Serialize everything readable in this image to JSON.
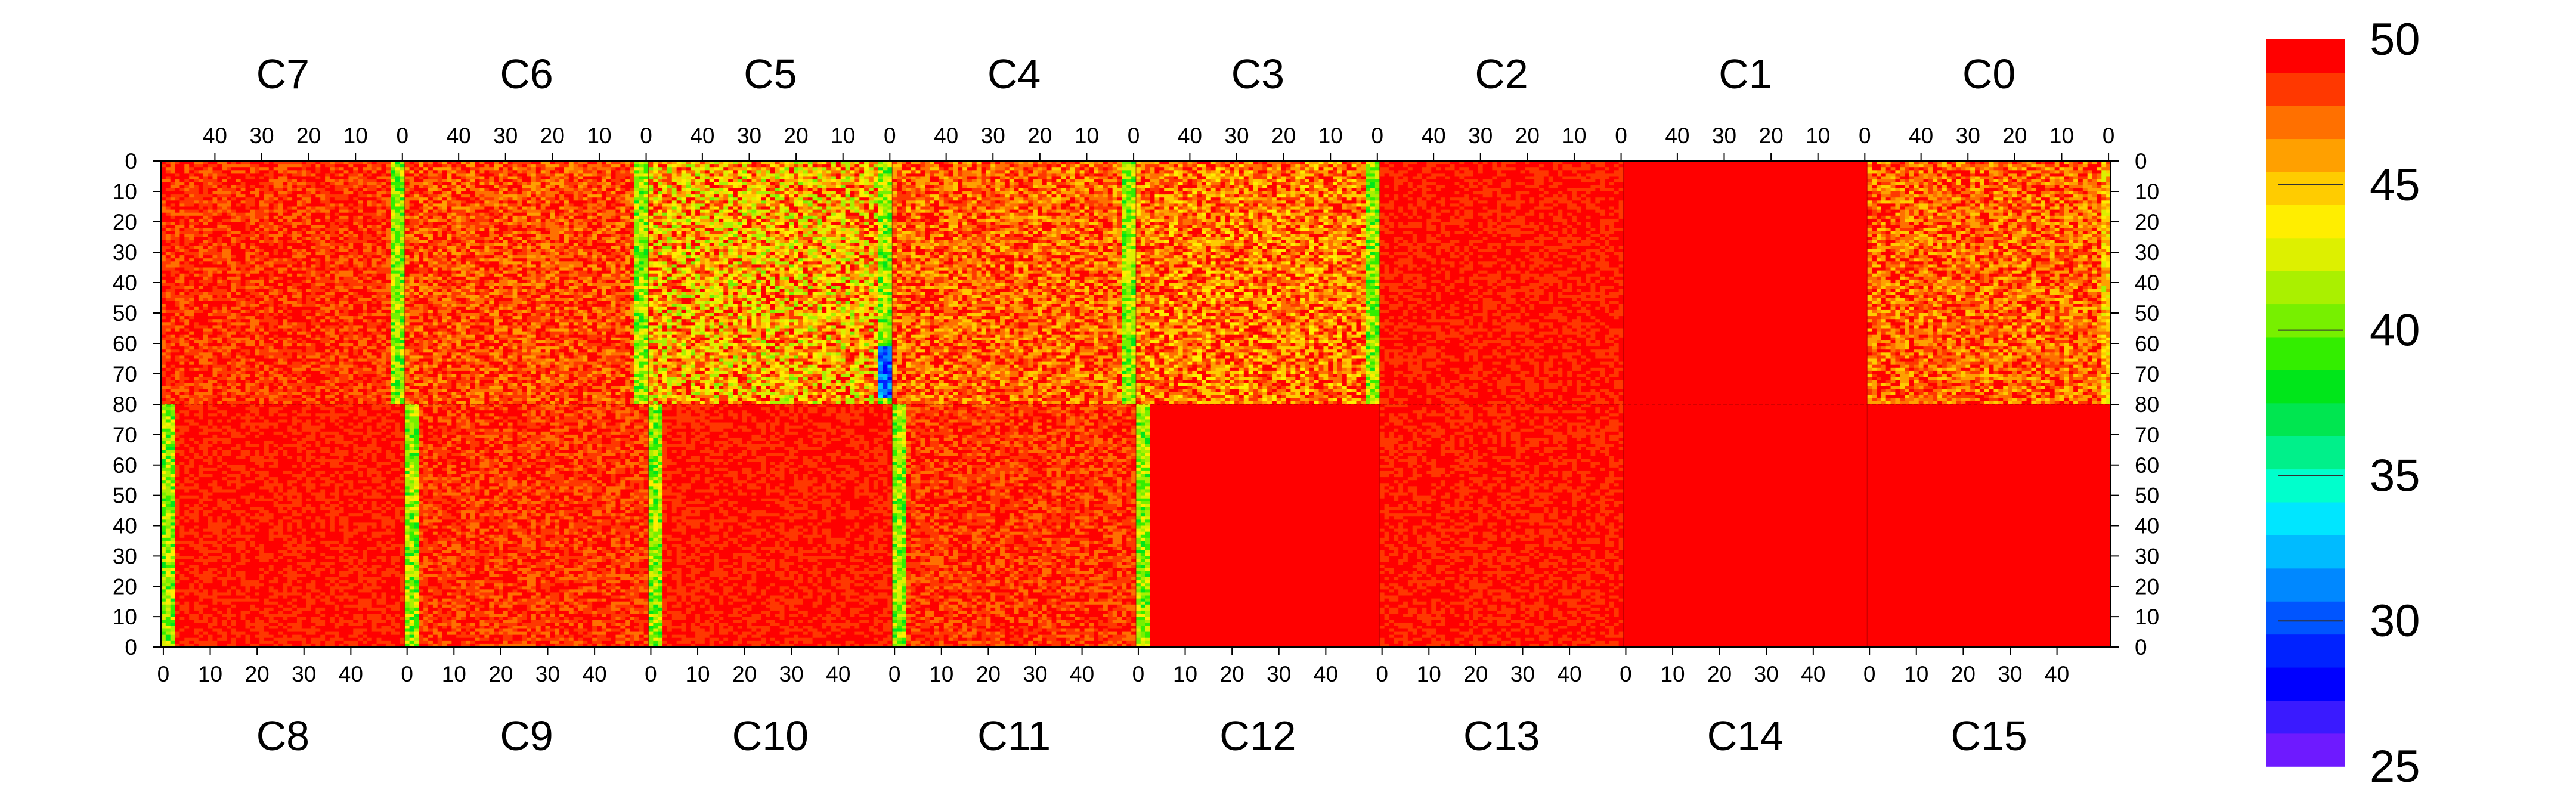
{
  "chart_data": {
    "type": "heatmap",
    "title": "",
    "top_chip_labels": [
      "C7",
      "C6",
      "C5",
      "C4",
      "C3",
      "C2",
      "C1",
      "C0"
    ],
    "bottom_chip_labels": [
      "C8",
      "C9",
      "C10",
      "C11",
      "C12",
      "C13",
      "C14",
      "C15"
    ],
    "top_x_ticks": [
      "40",
      "30",
      "20",
      "10",
      "0"
    ],
    "bottom_x_ticks": [
      "0",
      "10",
      "20",
      "30",
      "40"
    ],
    "top_x_tick_values": [
      40,
      30,
      20,
      10,
      0
    ],
    "bottom_x_tick_values": [
      0,
      10,
      20,
      30,
      40
    ],
    "y_ticks_upper": [
      "0",
      "10",
      "20",
      "30",
      "40",
      "50",
      "60",
      "70",
      "80"
    ],
    "y_ticks_lower": [
      "70",
      "60",
      "50",
      "40",
      "30",
      "20",
      "10",
      "0"
    ],
    "y_tick_values_upper": [
      0,
      10,
      20,
      30,
      40,
      50,
      60,
      70,
      80
    ],
    "y_tick_values_lower": [
      70,
      60,
      50,
      40,
      30,
      20,
      10,
      0
    ],
    "columns_per_chip": 52,
    "rows_per_half": 80,
    "colorbar": {
      "min": 25,
      "max": 50,
      "tick_values": [
        50,
        45,
        40,
        35,
        30,
        25
      ],
      "tick_labels": [
        "50",
        "45",
        "40",
        "35",
        "30",
        "25"
      ],
      "colors": [
        "#6e1aff",
        "#3a1aff",
        "#0000ff",
        "#0022ff",
        "#0055ff",
        "#0088ff",
        "#00bbff",
        "#00e6ff",
        "#00ffcc",
        "#00f08a",
        "#00e650",
        "#00e61a",
        "#33ee00",
        "#77f000",
        "#aaf000",
        "#ddf000",
        "#ffee00",
        "#ffcc00",
        "#ffa000",
        "#ff7000",
        "#ff3800",
        "#ff0000"
      ]
    },
    "chip_typical_values": {
      "C7": 48.5,
      "C6": 48,
      "C5": 45.5,
      "C4": 47.5,
      "C3": 47,
      "C2": 49,
      "C1": 50,
      "C0": 47.5,
      "C8": 49,
      "C9": 48.5,
      "C10": 49,
      "C11": 48.5,
      "C12": 49.5,
      "C13": 49,
      "C14": 50,
      "C15": 50
    },
    "low_value_columns": "vertical green stripes (~35-42) near column 0-2 of chips C7/C8, C6/C9, C5/C10, C4/C11, C3/C12; minimum ~27 in chip C5 near row 75"
  }
}
